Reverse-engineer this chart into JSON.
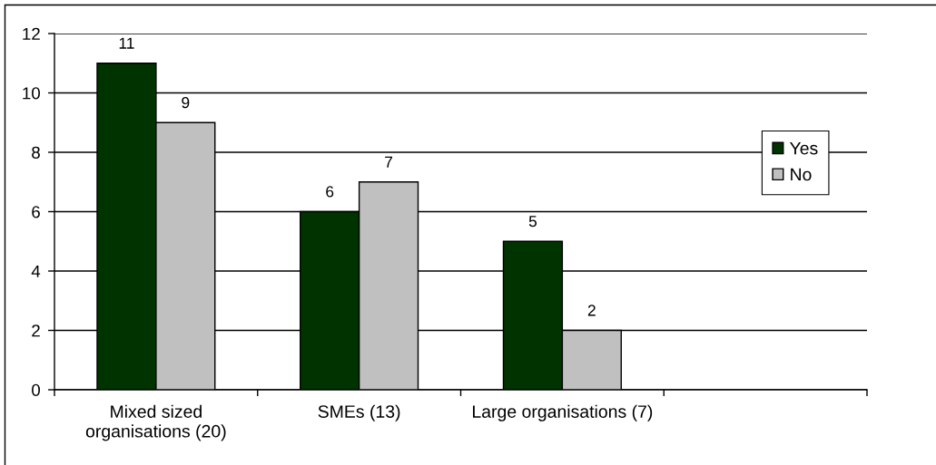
{
  "chart_data": {
    "type": "bar",
    "categories": [
      "Mixed sized organisations (20)",
      "SMEs (13)",
      "Large organisations (7)",
      null
    ],
    "series": [
      {
        "name": "Yes",
        "color": "#003300",
        "values": [
          11,
          6,
          5,
          null
        ]
      },
      {
        "name": "No",
        "color": "#c0c0c0",
        "values": [
          9,
          7,
          2,
          null
        ]
      }
    ],
    "ylim": [
      0,
      12
    ],
    "yticks": [
      0,
      2,
      4,
      6,
      8,
      10,
      12
    ],
    "grid": "y",
    "legend": "right",
    "data_labels": true
  }
}
